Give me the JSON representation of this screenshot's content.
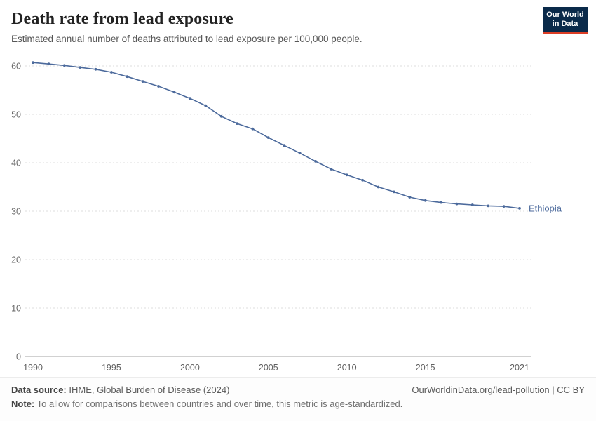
{
  "header": {
    "title": "Death rate from lead exposure",
    "subtitle": "Estimated annual number of deaths attributed to lead exposure per 100,000 people.",
    "logo": {
      "line1": "Our World",
      "line2": "in Data",
      "bg": "#0a2a4a",
      "accent": "#dc3e26"
    }
  },
  "chart_data": {
    "type": "line",
    "title": "Death rate from lead exposure",
    "subtitle": "Estimated annual number of deaths attributed to lead exposure per 100,000 people.",
    "xlabel": "",
    "ylabel": "",
    "xlim": [
      1990,
      2021
    ],
    "ylim": [
      0,
      62
    ],
    "x_ticks": [
      1990,
      1995,
      2000,
      2005,
      2010,
      2015,
      2021
    ],
    "y_ticks": [
      0,
      10,
      20,
      30,
      40,
      50,
      60
    ],
    "grid": "dashed-horizontal",
    "legend_position": "end-of-line-label",
    "series": [
      {
        "name": "Ethiopia",
        "color": "#4c6a9c",
        "x": [
          1990,
          1991,
          1992,
          1993,
          1994,
          1995,
          1996,
          1997,
          1998,
          1999,
          2000,
          2001,
          2002,
          2003,
          2004,
          2005,
          2006,
          2007,
          2008,
          2009,
          2010,
          2011,
          2012,
          2013,
          2014,
          2015,
          2016,
          2017,
          2018,
          2019,
          2020,
          2021
        ],
        "values": [
          60.7,
          60.4,
          60.1,
          59.7,
          59.3,
          58.7,
          57.8,
          56.8,
          55.8,
          54.6,
          53.3,
          51.8,
          49.6,
          48.1,
          47.0,
          45.2,
          43.6,
          42.0,
          40.3,
          38.7,
          37.5,
          36.4,
          35.0,
          34.0,
          32.9,
          32.2,
          31.8,
          31.5,
          31.3,
          31.1,
          31.0,
          30.6
        ]
      }
    ]
  },
  "footer": {
    "source_label": "Data source:",
    "source_text": " IHME, Global Burden of Disease (2024)",
    "right_text": "OurWorldinData.org/lead-pollution | CC BY",
    "note_label": "Note:",
    "note_text": " To allow for comparisons between countries and over time, this metric is age-standardized."
  }
}
